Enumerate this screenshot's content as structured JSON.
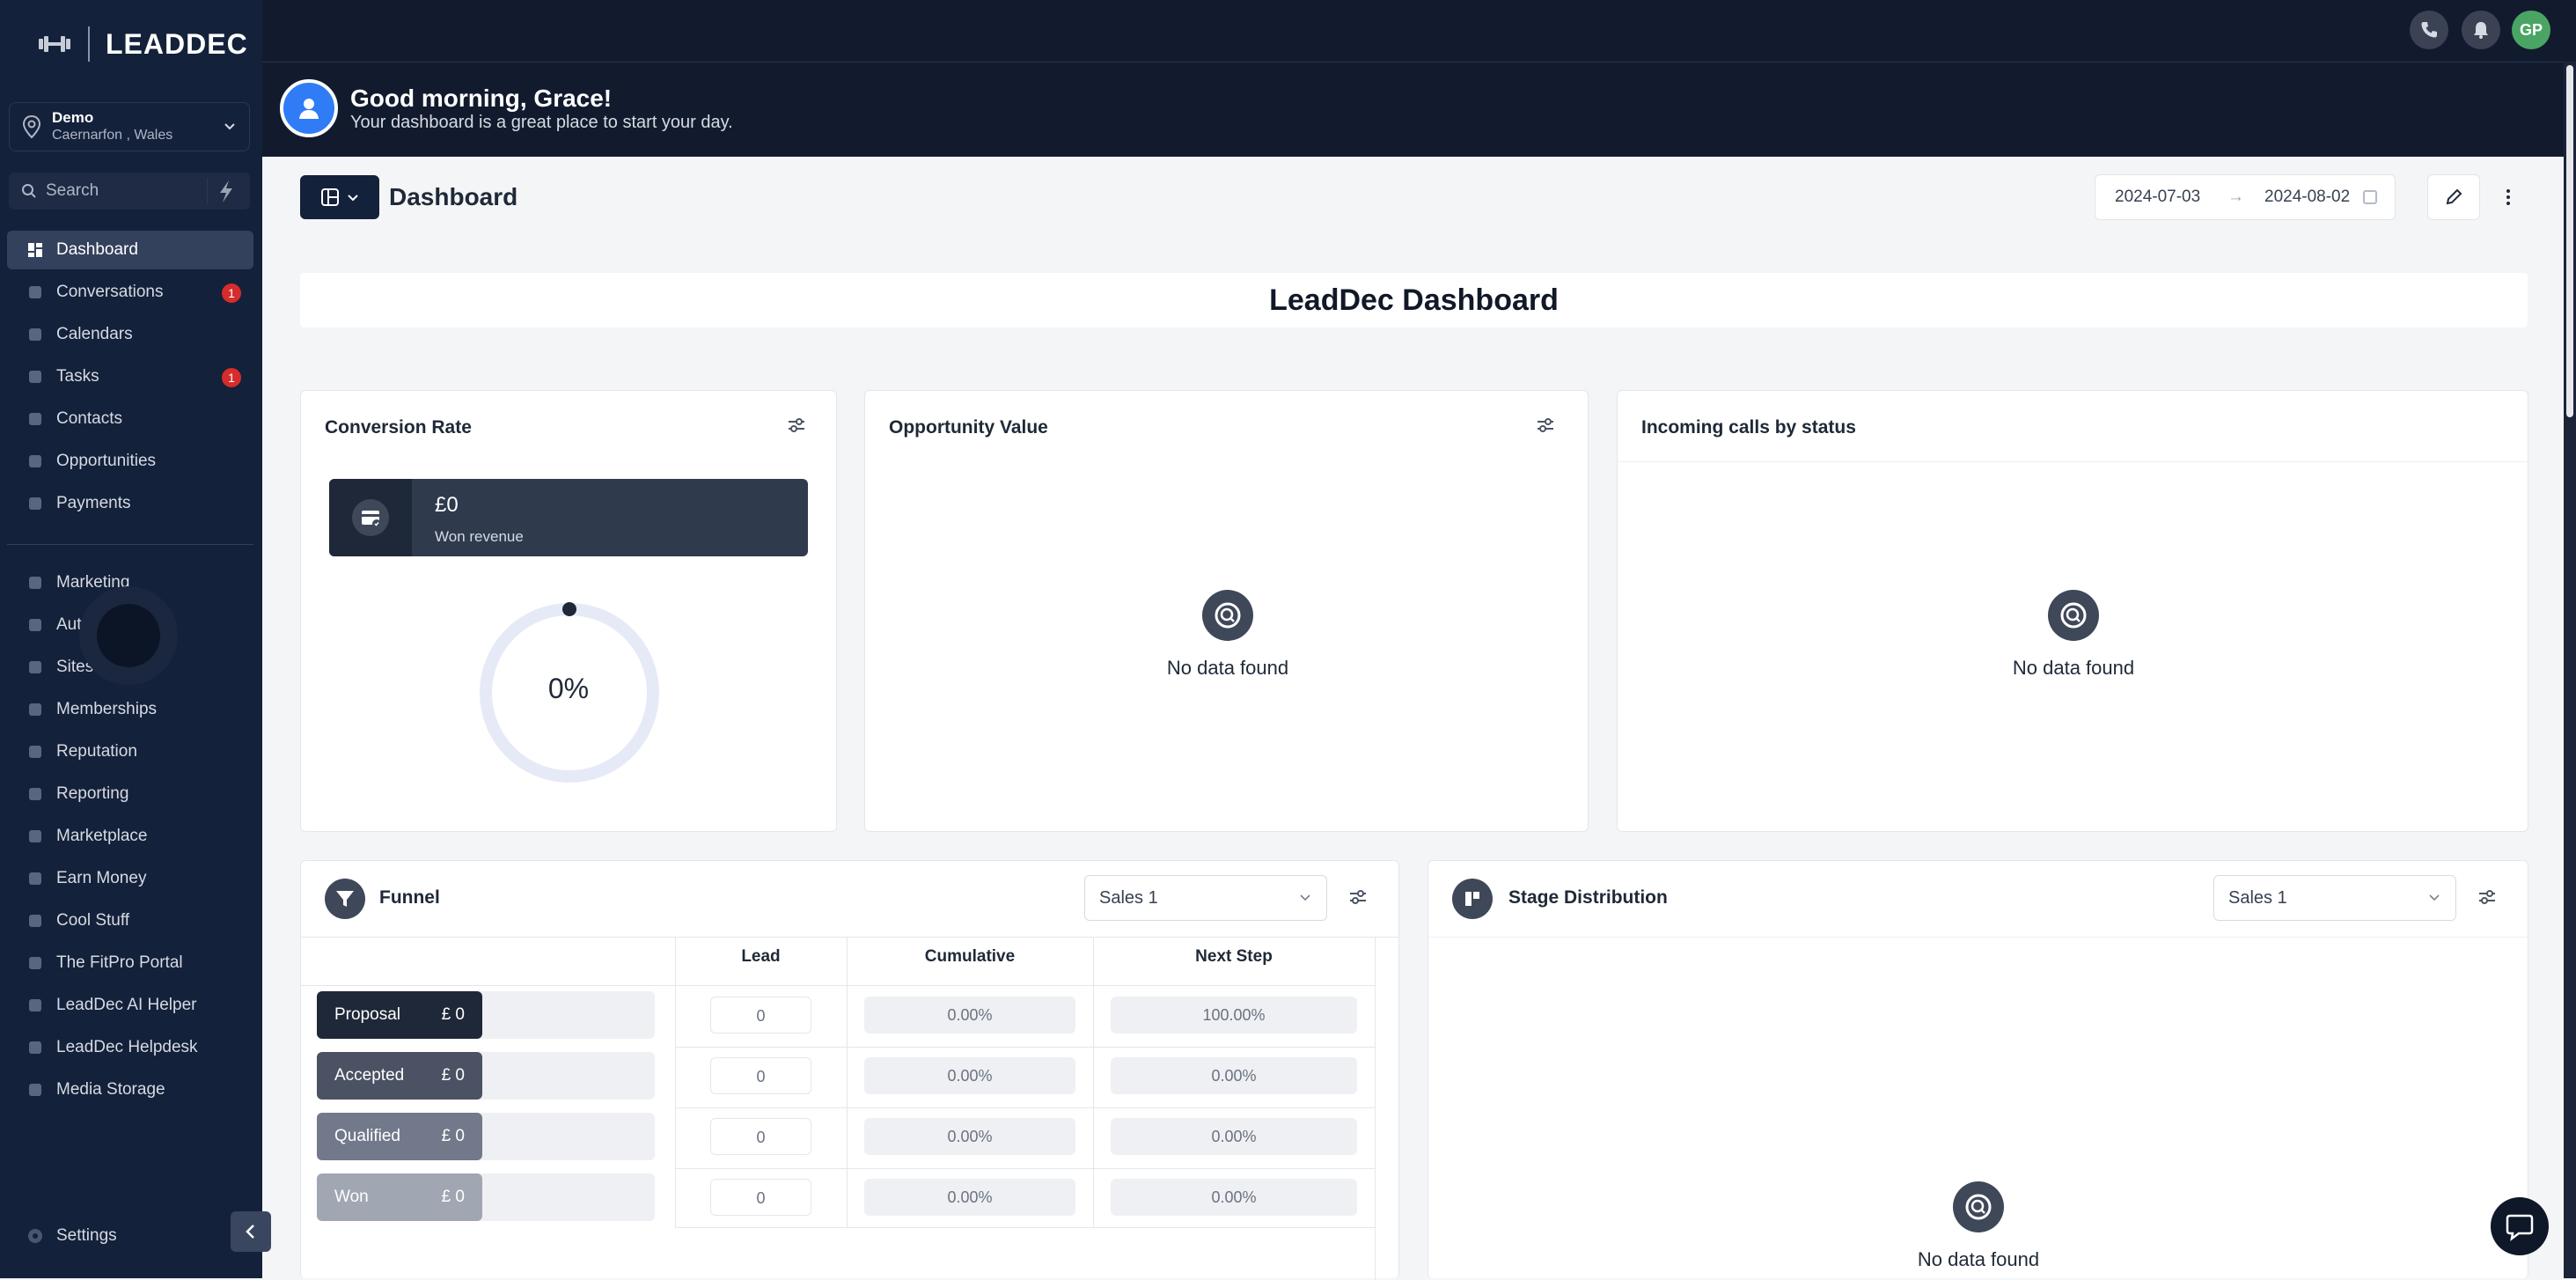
{
  "brand": {
    "name": "LEADDEC"
  },
  "location": {
    "name": "Demo",
    "sub": "Caernarfon , Wales"
  },
  "search": {
    "placeholder": "Search"
  },
  "sidebar": {
    "items": [
      {
        "label": "Dashboard",
        "icon": "dashboard-icon",
        "active": true
      },
      {
        "label": "Conversations",
        "icon": "chat-icon",
        "badge": "1"
      },
      {
        "label": "Calendars",
        "icon": "calendar-icon"
      },
      {
        "label": "Tasks",
        "icon": "check-icon",
        "badge": "1"
      },
      {
        "label": "Contacts",
        "icon": "user-icon"
      },
      {
        "label": "Opportunities",
        "icon": "filter-icon"
      },
      {
        "label": "Payments",
        "icon": "card-icon"
      },
      {
        "label": "Marketing",
        "icon": "megaphone-icon"
      },
      {
        "label": "Auto",
        "icon": "automation-icon"
      },
      {
        "label": "Sites",
        "icon": "sites-icon"
      },
      {
        "label": "Memberships",
        "icon": "members-icon"
      },
      {
        "label": "Reputation",
        "icon": "star-icon"
      },
      {
        "label": "Reporting",
        "icon": "chart-icon"
      },
      {
        "label": "Marketplace",
        "icon": "cart-icon"
      },
      {
        "label": "Earn Money",
        "icon": "money-icon"
      },
      {
        "label": "Cool Stuff",
        "icon": "flame-icon"
      },
      {
        "label": "The FitPro Portal",
        "icon": "dumbbell-icon"
      },
      {
        "label": "LeadDec AI Helper",
        "icon": "robot-icon"
      },
      {
        "label": "LeadDec Helpdesk",
        "icon": "info-icon"
      },
      {
        "label": "Media Storage",
        "icon": "image-icon"
      }
    ],
    "settings": "Settings"
  },
  "topbar": {
    "avatar_initials": "GP"
  },
  "greeting": {
    "title": "Good morning, Grace!",
    "subtitle": "Your dashboard is a great place to start your day."
  },
  "page": {
    "title": "Dashboard",
    "date_from": "2024-07-03",
    "date_to": "2024-08-02",
    "arrow": "→"
  },
  "banner": {
    "title": "LeadDec Dashboard"
  },
  "conversion": {
    "title": "Conversion Rate",
    "won_amount": "£0",
    "won_label": "Won revenue",
    "rate": "0%",
    "rate_value": 0
  },
  "opportunity": {
    "title": "Opportunity Value",
    "empty": "No data found"
  },
  "incoming": {
    "title": "Incoming calls by status",
    "empty": "No data found"
  },
  "funnel": {
    "title": "Funnel",
    "pipeline": "Sales 1",
    "columns": [
      "Lead",
      "Cumulative",
      "Next Step"
    ],
    "rows": [
      {
        "stage": "Proposal",
        "value": "£ 0",
        "lead": "0",
        "cumulative": "0.00%",
        "next": "100.00%",
        "color": "#1f2838"
      },
      {
        "stage": "Accepted",
        "value": "£ 0",
        "lead": "0",
        "cumulative": "0.00%",
        "next": "0.00%",
        "color": "#4a5263"
      },
      {
        "stage": "Qualified",
        "value": "£ 0",
        "lead": "0",
        "cumulative": "0.00%",
        "next": "0.00%",
        "color": "#71798a"
      },
      {
        "stage": "Won",
        "value": "£ 0",
        "lead": "0",
        "cumulative": "0.00%",
        "next": "0.00%",
        "color": "#a0a6b2"
      }
    ]
  },
  "stage_distribution": {
    "title": "Stage Distribution",
    "pipeline": "Sales 1",
    "empty": "No data found"
  }
}
